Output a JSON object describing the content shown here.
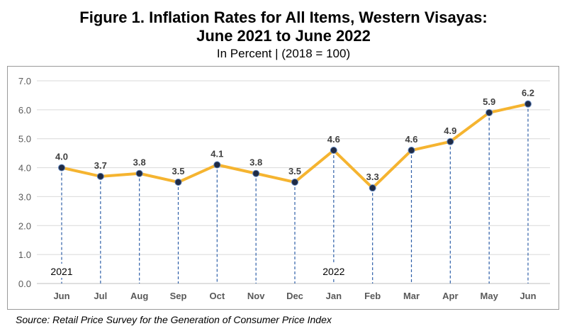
{
  "title_line1": "Figure 1. Inflation Rates for All Items, Western Visayas:",
  "title_line2": "June 2021 to June 2022",
  "subtitle": "In Percent | (2018 = 100)",
  "source": "Source: Retail Price Survey for the Generation of Consumer Price Index",
  "colors": {
    "line": "#F5B430",
    "marker": "#1F2A44",
    "dropline": "#2E5FA8",
    "grid": "#D9D9D9"
  },
  "chart_data": {
    "type": "line",
    "title": "Figure 1. Inflation Rates for All Items, Western Visayas: June 2021 to June 2022",
    "subtitle": "In Percent | (2018 = 100)",
    "categories": [
      "Jun",
      "Jul",
      "Aug",
      "Sep",
      "Oct",
      "Nov",
      "Dec",
      "Jan",
      "Feb",
      "Mar",
      "Apr",
      "May",
      "Jun"
    ],
    "values": [
      4.0,
      3.7,
      3.8,
      3.5,
      4.1,
      3.8,
      3.5,
      4.6,
      3.3,
      4.6,
      4.9,
      5.9,
      6.2
    ],
    "value_labels": [
      "4.0",
      "3.7",
      "3.8",
      "3.5",
      "4.1",
      "3.8",
      "3.5",
      "4.6",
      "3.3",
      "4.6",
      "4.9",
      "5.9",
      "6.2"
    ],
    "year_labels": [
      {
        "index": 0,
        "label": "2021"
      },
      {
        "index": 7,
        "label": "2022"
      }
    ],
    "y_ticks": [
      "0.0",
      "1.0",
      "2.0",
      "3.0",
      "4.0",
      "5.0",
      "6.0",
      "7.0"
    ],
    "ylim": [
      0,
      7
    ],
    "grid": true,
    "drop_lines": true
  }
}
